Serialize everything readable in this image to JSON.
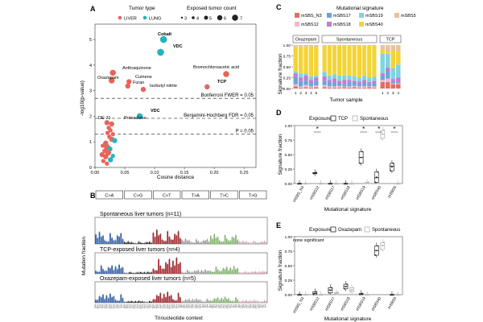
{
  "colors": {
    "liver": "#e8645a",
    "lung": "#22b5c0",
    "ctA": "#2f5fa8",
    "ctG": "#222222",
    "ctT": "#a0262b",
    "tA": "#9a9a9a",
    "tC": "#7fb76a",
    "tG": "#e2a3b0",
    "sig_mSBS_N3": "#e06f62",
    "sig_mSBS12": "#f2b6d2",
    "sig_mSBS17": "#6aa6d8",
    "sig_mSBS18": "#c07ecf",
    "sig_mSBS19": "#7fd3e3",
    "sig_mSBS40": "#f3d437",
    "sig_mSBS5": "#e8c39a",
    "tcp_dark": "#2a2a2a",
    "spont_grey": "#b3b3b3"
  },
  "panelA": {
    "letter": "A",
    "legend_type_title": "Tumor type",
    "legend_type_items": [
      "LIVER",
      "LUNG"
    ],
    "legend_count_title": "Exposed tumor count",
    "legend_count_items": [
      "3",
      "4",
      "5",
      "6",
      "7"
    ],
    "xlabel": "Cosine distance",
    "ylabel": "-log10(p-value)",
    "xticks": [
      "0.00",
      "0.05",
      "0.10",
      "0.15",
      "0.20",
      "0.25"
    ],
    "yticks": [
      "0",
      "1",
      "2",
      "3",
      "4",
      "5"
    ],
    "thr_bonf": "Bonferroni FWER = 0.05",
    "thr_bh": "Benjamini-Hochberg FDR = 0.05",
    "thr_p": "P = 0.05",
    "labels": {
      "cobalt": "Cobalt",
      "vdc1": "VDC",
      "anthraquinone": "Anthraquinone",
      "oxazepam": "Oxazepam",
      "cumene": "Cumene",
      "furan": "Furan",
      "isobutyl": "Isobutyl nitrite",
      "bromochloro": "Bromochloroacetic acid",
      "tcp": "TCP",
      "vdc2": "VDC",
      "de71": "DE-71",
      "primaclone": "Primaclone"
    }
  },
  "panelB": {
    "letter": "B",
    "mut_types": [
      "C>A",
      "C>G",
      "C>T",
      "T>A",
      "T>C",
      "T>G"
    ],
    "rows": [
      "Spontaneous liver tumors (n=11)",
      "TCP-exposed liver tumors (n=4)",
      "Oxazepam-exposed liver tumors (n=5)"
    ],
    "ylabel": "Mutation fraction",
    "xlabel": "Trinucleotide context"
  },
  "panelC": {
    "letter": "C",
    "legend_title": "Mutational signature",
    "legend_items": [
      "mSBS_N3",
      "mSBS12",
      "mSBS17",
      "mSBS18",
      "mSBS19",
      "mSBS40",
      "mSBS5"
    ],
    "facets": [
      "Oxazepam",
      "Spontaneous",
      "TCP"
    ],
    "ylabel": "Signature fraction",
    "xlabel": "Tumor sample",
    "yticks": [
      "0.00",
      "0.25",
      "0.50",
      "0.75",
      "1.00"
    ],
    "ox_ticks": [
      "1",
      "2",
      "3",
      "4",
      "5"
    ],
    "tcp_ticks": [
      "1",
      "2",
      "3",
      "4"
    ]
  },
  "panelD": {
    "letter": "D",
    "legend_title": "Exposure",
    "legend_items": [
      "TCP",
      "Spontaneous"
    ],
    "signatures": [
      "mSBS_N3",
      "mSBS12",
      "mSBS17",
      "mSBS18",
      "mSBS19",
      "mSBS40",
      "mSBS5"
    ],
    "star": "*",
    "ylabel": "Signature fraction",
    "xlabel": "Mutational signature",
    "yticks": [
      "0.00",
      "0.25",
      "0.50",
      "0.75",
      "1.00"
    ]
  },
  "panelE": {
    "letter": "E",
    "legend_title": "Exposure",
    "legend_items": [
      "Oxazepam",
      "Spontaneous"
    ],
    "annotation": "none significant",
    "signatures": [
      "mSBS_N3",
      "mSBS12",
      "mSBS17",
      "mSBS18",
      "mSBS19",
      "mSBS40",
      "mSBS5"
    ],
    "ylabel": "Signature fraction",
    "xlabel": "Mutational signature",
    "yticks": [
      "0.00",
      "0.25",
      "0.50",
      "0.75",
      "1.00"
    ]
  },
  "chart_data": [
    {
      "type": "scatter",
      "panel": "A",
      "xlabel": "Cosine distance",
      "ylabel": "-log10(p-value)",
      "xlim": [
        0,
        0.27
      ],
      "ylim": [
        0,
        5.6
      ],
      "points": [
        {
          "x": 0.115,
          "y": 5.0,
          "tumor": "LUNG",
          "size": 6,
          "label": "Cobalt"
        },
        {
          "x": 0.11,
          "y": 4.5,
          "tumor": "LUNG",
          "size": 6,
          "label": "VDC"
        },
        {
          "x": 0.03,
          "y": 3.7,
          "tumor": "LIVER",
          "size": 5,
          "label": "Anthraquinone"
        },
        {
          "x": 0.028,
          "y": 3.4,
          "tumor": "LIVER",
          "size": 5,
          "label": "Oxazepam"
        },
        {
          "x": 0.057,
          "y": 3.35,
          "tumor": "LIVER",
          "size": 4,
          "label": "Cumene"
        },
        {
          "x": 0.055,
          "y": 3.18,
          "tumor": "LIVER",
          "size": 4,
          "label": "Furan"
        },
        {
          "x": 0.081,
          "y": 3.05,
          "tumor": "LIVER",
          "size": 4,
          "label": "Isobutyl nitrite"
        },
        {
          "x": 0.22,
          "y": 3.65,
          "tumor": "LIVER",
          "size": 5,
          "label": "Bromochloroacetic acid"
        },
        {
          "x": 0.188,
          "y": 3.15,
          "tumor": "LIVER",
          "size": 4,
          "label": "TCP"
        },
        {
          "x": 0.075,
          "y": 2.0,
          "tumor": "LUNG",
          "size": 5,
          "label": "VDC"
        },
        {
          "x": 0.02,
          "y": 1.75,
          "tumor": "LIVER",
          "size": 4,
          "label": "DE-71"
        },
        {
          "x": 0.028,
          "y": 1.7,
          "tumor": "LIVER",
          "size": 4,
          "label": "Primaclone"
        },
        {
          "x": 0.023,
          "y": 1.55,
          "tumor": "LIVER",
          "size": 3
        },
        {
          "x": 0.026,
          "y": 1.45,
          "tumor": "LIVER",
          "size": 3
        },
        {
          "x": 0.021,
          "y": 1.35,
          "tumor": "LIVER",
          "size": 3
        },
        {
          "x": 0.03,
          "y": 1.3,
          "tumor": "LIVER",
          "size": 3
        },
        {
          "x": 0.024,
          "y": 1.2,
          "tumor": "LIVER",
          "size": 3
        },
        {
          "x": 0.028,
          "y": 1.1,
          "tumor": "LIVER",
          "size": 4
        },
        {
          "x": 0.033,
          "y": 1.05,
          "tumor": "LUNG",
          "size": 4
        },
        {
          "x": 0.018,
          "y": 0.95,
          "tumor": "LIVER",
          "size": 4
        },
        {
          "x": 0.013,
          "y": 0.85,
          "tumor": "LIVER",
          "size": 3
        },
        {
          "x": 0.02,
          "y": 0.8,
          "tumor": "LIVER",
          "size": 5
        },
        {
          "x": 0.025,
          "y": 0.72,
          "tumor": "LUNG",
          "size": 4
        },
        {
          "x": 0.016,
          "y": 0.65,
          "tumor": "LIVER",
          "size": 3
        },
        {
          "x": 0.022,
          "y": 0.58,
          "tumor": "LIVER",
          "size": 5
        },
        {
          "x": 0.012,
          "y": 0.5,
          "tumor": "LIVER",
          "size": 4
        },
        {
          "x": 0.018,
          "y": 0.42,
          "tumor": "LIVER",
          "size": 4
        },
        {
          "x": 0.03,
          "y": 0.45,
          "tumor": "LUNG",
          "size": 3
        },
        {
          "x": 0.026,
          "y": 0.3,
          "tumor": "LUNG",
          "size": 4
        },
        {
          "x": 0.014,
          "y": 0.25,
          "tumor": "LIVER",
          "size": 3
        },
        {
          "x": 0.02,
          "y": 0.15,
          "tumor": "LIVER",
          "size": 3
        }
      ],
      "thresholds": {
        "bonferroni": 2.7,
        "bh": 1.92,
        "p": 1.3
      }
    },
    {
      "type": "bar",
      "panel": "B",
      "title": "Mutational spectra (96 trinucleotide contexts)",
      "note": "Bar heights approximate; 96 contexts per row across 6 substitution classes.",
      "series": [
        {
          "name": "Spontaneous liver tumors (n=11)",
          "values_by_class": {
            "C>A": 0.05,
            "C>G": 0.01,
            "C>T": 0.06,
            "T>A": 0.02,
            "T>C": 0.04,
            "T>G": 0.01
          }
        },
        {
          "name": "TCP-exposed liver tumors (n=4)",
          "values_by_class": {
            "C>A": 0.05,
            "C>G": 0.01,
            "C>T": 0.09,
            "T>A": 0.02,
            "T>C": 0.04,
            "T>G": 0.01
          }
        },
        {
          "name": "Oxazepam-exposed liver tumors (n=5)",
          "values_by_class": {
            "C>A": 0.05,
            "C>G": 0.01,
            "C>T": 0.06,
            "T>A": 0.02,
            "T>C": 0.03,
            "T>G": 0.01
          }
        }
      ]
    },
    {
      "type": "bar",
      "panel": "C",
      "stacked": true,
      "ylim": [
        0,
        1
      ],
      "signatures": [
        "mSBS_N3",
        "mSBS12",
        "mSBS17",
        "mSBS18",
        "mSBS19",
        "mSBS40",
        "mSBS5"
      ],
      "facets": [
        {
          "name": "Oxazepam",
          "samples": [
            [
              0.05,
              0.05,
              0.15,
              0.1,
              0.05,
              0.55,
              0.05
            ],
            [
              0.02,
              0.03,
              0.12,
              0.08,
              0.1,
              0.6,
              0.05
            ],
            [
              0.03,
              0.05,
              0.1,
              0.12,
              0.05,
              0.6,
              0.05
            ],
            [
              0.02,
              0.03,
              0.08,
              0.07,
              0.08,
              0.7,
              0.02
            ],
            [
              0.03,
              0.04,
              0.1,
              0.08,
              0.05,
              0.65,
              0.05
            ]
          ]
        },
        {
          "name": "Spontaneous",
          "samples": [
            [
              0.03,
              0.05,
              0.1,
              0.1,
              0.1,
              0.62,
              0.0
            ],
            [
              0.02,
              0.03,
              0.1,
              0.05,
              0.1,
              0.7,
              0.0
            ],
            [
              0.02,
              0.03,
              0.08,
              0.1,
              0.1,
              0.67,
              0.0
            ],
            [
              0.02,
              0.04,
              0.06,
              0.06,
              0.12,
              0.7,
              0.0
            ],
            [
              0.03,
              0.02,
              0.05,
              0.1,
              0.1,
              0.7,
              0.0
            ],
            [
              0.02,
              0.03,
              0.1,
              0.05,
              0.1,
              0.7,
              0.0
            ],
            [
              0.03,
              0.03,
              0.07,
              0.05,
              0.1,
              0.72,
              0.0
            ],
            [
              0.02,
              0.03,
              0.05,
              0.06,
              0.09,
              0.75,
              0.0
            ],
            [
              0.02,
              0.03,
              0.08,
              0.07,
              0.1,
              0.7,
              0.0
            ],
            [
              0.03,
              0.02,
              0.05,
              0.05,
              0.1,
              0.75,
              0.0
            ],
            [
              0.02,
              0.03,
              0.07,
              0.06,
              0.09,
              0.73,
              0.0
            ]
          ]
        },
        {
          "name": "TCP",
          "samples": [
            [
              0.15,
              0.05,
              0.1,
              0.05,
              0.45,
              0.1,
              0.1
            ],
            [
              0.15,
              0.08,
              0.15,
              0.1,
              0.32,
              0.05,
              0.15
            ],
            [
              0.1,
              0.02,
              0.05,
              0.05,
              0.25,
              0.4,
              0.13
            ],
            [
              0.1,
              0.02,
              0.03,
              0.1,
              0.3,
              0.3,
              0.15
            ]
          ]
        }
      ]
    },
    {
      "type": "box",
      "panel": "D",
      "ylim": [
        0,
        1
      ],
      "signatures": [
        "mSBS_N3",
        "mSBS12",
        "mSBS17",
        "mSBS18",
        "mSBS19",
        "mSBS40",
        "mSBS5"
      ],
      "significant": [
        false,
        true,
        false,
        false,
        true,
        true,
        true
      ],
      "series": [
        {
          "name": "TCP",
          "median": [
            0.0,
            0.18,
            0.0,
            0.0,
            0.45,
            0.1,
            0.3
          ],
          "q1": [
            0.0,
            0.17,
            0.0,
            0.0,
            0.35,
            0.02,
            0.22
          ],
          "q3": [
            0.0,
            0.19,
            0.0,
            0.0,
            0.55,
            0.2,
            0.35
          ]
        },
        {
          "name": "Spontaneous",
          "median": [
            0.0,
            0.0,
            0.0,
            0.0,
            0.0,
            0.85,
            0.0
          ],
          "q1": [
            0.0,
            0.0,
            0.0,
            0.0,
            0.0,
            0.78,
            0.0
          ],
          "q3": [
            0.0,
            0.0,
            0.0,
            0.0,
            0.02,
            0.92,
            0.0
          ]
        }
      ]
    },
    {
      "type": "box",
      "panel": "E",
      "ylim": [
        0,
        1
      ],
      "signatures": [
        "mSBS_N3",
        "mSBS12",
        "mSBS17",
        "mSBS18",
        "mSBS19",
        "mSBS40",
        "mSBS5"
      ],
      "series": [
        {
          "name": "Oxazepam",
          "median": [
            0.0,
            0.02,
            0.08,
            0.14,
            0.0,
            0.76,
            0.0
          ],
          "q1": [
            0.0,
            0.0,
            0.03,
            0.1,
            0.0,
            0.68,
            0.0
          ],
          "q3": [
            0.0,
            0.05,
            0.12,
            0.18,
            0.02,
            0.84,
            0.0
          ]
        },
        {
          "name": "Spontaneous",
          "median": [
            0.0,
            0.0,
            0.02,
            0.08,
            0.0,
            0.85,
            0.0
          ],
          "q1": [
            0.0,
            0.0,
            0.0,
            0.05,
            0.0,
            0.78,
            0.0
          ],
          "q3": [
            0.0,
            0.0,
            0.04,
            0.12,
            0.0,
            0.9,
            0.0
          ]
        }
      ]
    }
  ]
}
